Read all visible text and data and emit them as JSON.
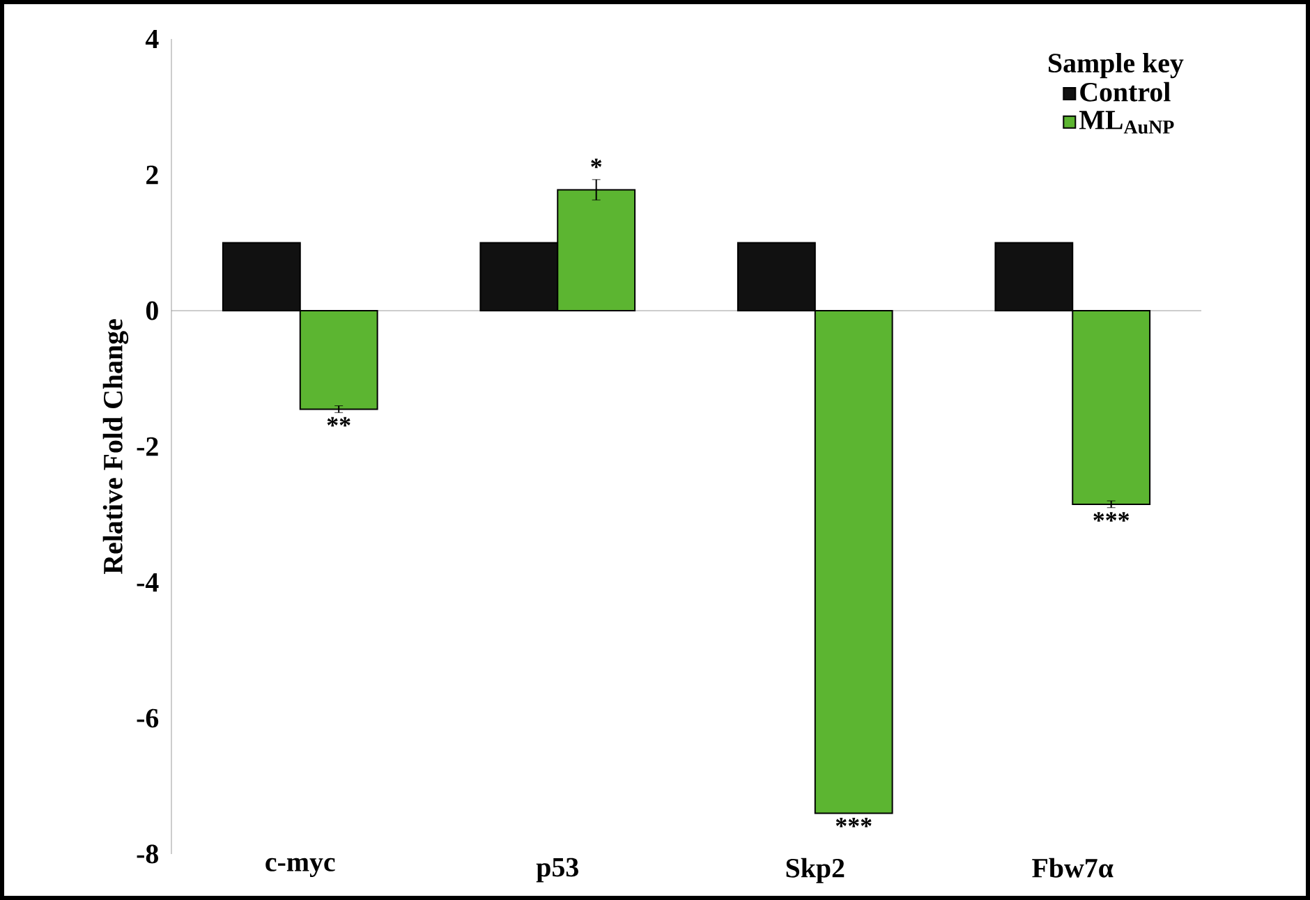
{
  "chart_data": {
    "type": "bar",
    "ylabel": "Relative Fold Change",
    "legend_title": "Sample key",
    "legend": "top right",
    "categories": [
      "c-myc",
      "p53",
      "Skp2",
      "Fbw7α"
    ],
    "series": [
      {
        "name": "Control",
        "color": "#111111",
        "values": [
          1,
          1,
          1,
          1
        ]
      },
      {
        "name": "ML$_{AuNP}$",
        "color": "#5cb531",
        "values": [
          -1.45,
          1.78,
          -7.4,
          -2.85
        ],
        "errors": [
          0.05,
          0.15,
          null,
          0.05
        ]
      }
    ],
    "ylim": [
      -8,
      4
    ],
    "yticks": [
      -8,
      -6,
      -4,
      -2,
      0,
      2,
      4
    ],
    "annotations": [
      "**",
      "*",
      "***",
      "***"
    ]
  }
}
